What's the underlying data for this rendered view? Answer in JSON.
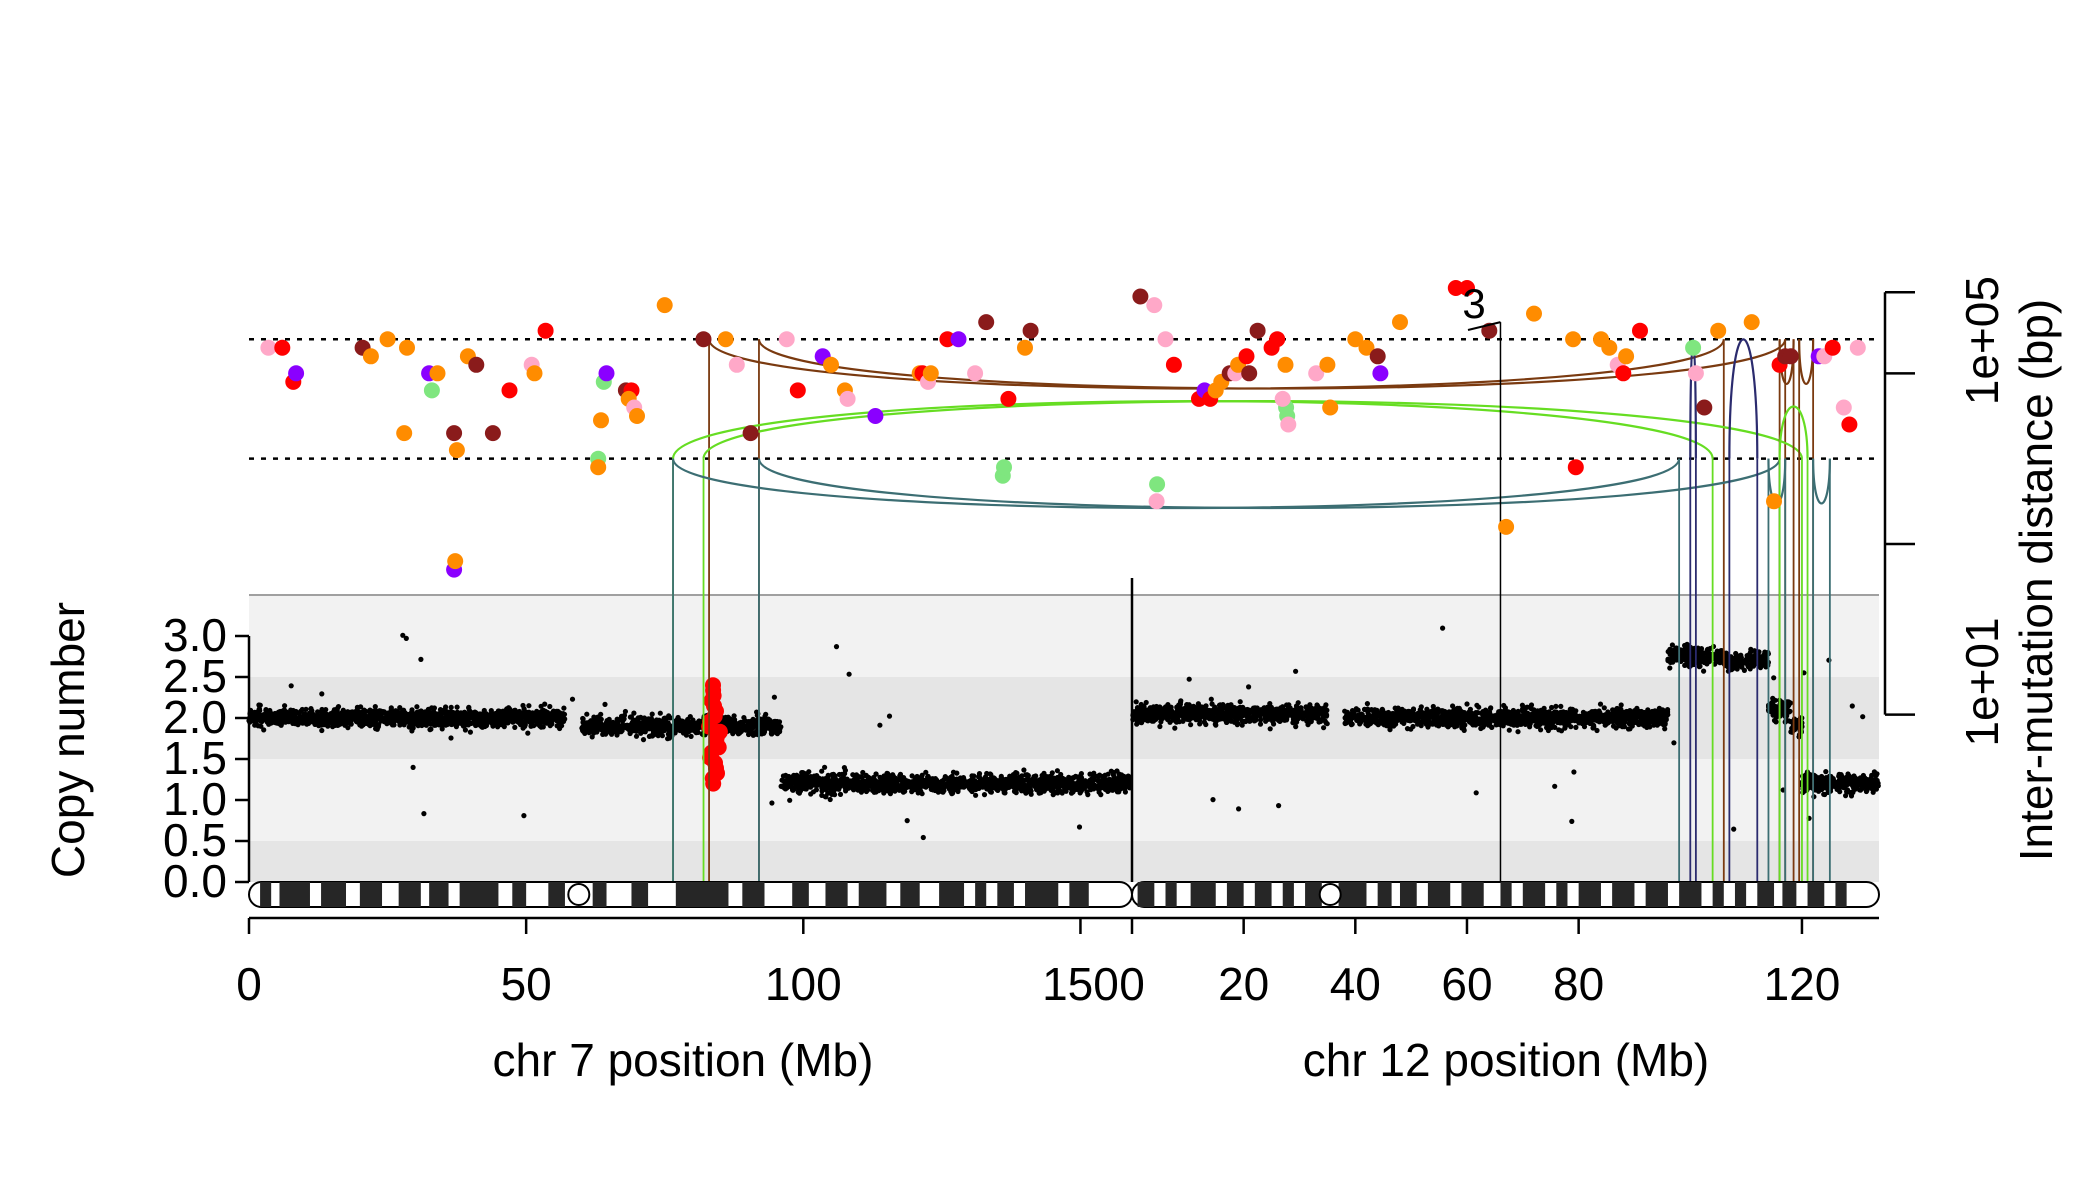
{
  "chart_data": {
    "type": "scatter",
    "description_of_panels": "rainfall-style inter-mutation distance scatter (top) over segmented copy-number track (bottom) for chr 7 and chr 12 with structural-variant arcs",
    "x_axis_left": {
      "label": "chr 7 position (Mb)",
      "ticks": [
        0,
        50,
        100,
        150
      ],
      "tick_labels": [
        "0",
        "50",
        "100",
        "150"
      ],
      "range": [
        0,
        159.3
      ]
    },
    "x_axis_right": {
      "label": "chr 12 position (Mb)",
      "ticks": [
        0,
        20,
        40,
        60,
        80,
        120
      ],
      "tick_labels": [
        "0",
        "20",
        "40",
        "60",
        "80",
        "120"
      ],
      "range": [
        0,
        133.8
      ]
    },
    "y_axis_left": {
      "label": "Copy number",
      "ticks": [
        0.0,
        0.5,
        1.0,
        1.5,
        2.0,
        2.5,
        3.0
      ],
      "tick_labels": [
        "0.0",
        "0.5",
        "1.0",
        "1.5",
        "2.0",
        "2.5",
        "3.0"
      ],
      "range": [
        0,
        3.5
      ]
    },
    "y_axis_right": {
      "label": "Inter-mutation distance (bp)",
      "scale": "log10",
      "ticks": [
        1,
        100,
        10000,
        1000000
      ],
      "tick_labels": [
        "1e+01",
        "1e+05"
      ],
      "labelled_tick_values": [
        10,
        100000
      ],
      "range": [
        1,
        1000000
      ]
    },
    "thresholds_log10": [
      4,
      5.4
    ],
    "marker_label": {
      "text": "3",
      "chr": "12",
      "pos_mb": 66,
      "log10": 5.6
    },
    "colors": {
      "C>A": "#8a1b1b",
      "C>G": "#ff0000",
      "C>T": "#ffa8c8",
      "T>A": "#ff8c00",
      "T>C": "#8a00ff",
      "T>G": "#7fe67f",
      "copy_number_points": "#000000",
      "copy_number_highlight": "#ff0000",
      "arc_del": "#7a3a10",
      "arc_dup": "#66dd22",
      "arc_inv_tt": "#3c6e73",
      "arc_inv_hh": "#2b2b6e",
      "band_dark": "#e5e5e5",
      "band_light": "#f2f2f2"
    },
    "rainfall_series": [
      {
        "chr": "7",
        "points": [
          [
            3.5,
            5.3,
            "C>T"
          ],
          [
            6,
            5.3,
            "C>G"
          ],
          [
            8,
            4.9,
            "C>G"
          ],
          [
            8.5,
            5.0,
            "T>C"
          ],
          [
            20.5,
            5.3,
            "C>A"
          ],
          [
            22,
            5.2,
            "T>A"
          ],
          [
            25,
            5.4,
            "T>A"
          ],
          [
            28,
            4.3,
            "T>A"
          ],
          [
            28.5,
            5.3,
            "T>A"
          ],
          [
            32.5,
            5.0,
            "T>C"
          ],
          [
            33,
            4.8,
            "T>G"
          ],
          [
            34,
            5.0,
            "T>A"
          ],
          [
            37,
            4.3,
            "C>A"
          ],
          [
            37.5,
            4.1,
            "T>A"
          ],
          [
            37,
            2.7,
            "T>C"
          ],
          [
            37.2,
            2.8,
            "T>A"
          ],
          [
            39.5,
            5.2,
            "T>A"
          ],
          [
            41,
            5.1,
            "C>A"
          ],
          [
            44,
            4.3,
            "C>A"
          ],
          [
            47,
            4.8,
            "C>G"
          ],
          [
            51,
            5.1,
            "C>T"
          ],
          [
            51.5,
            5.0,
            "T>A"
          ],
          [
            53.5,
            5.5,
            "C>G"
          ],
          [
            63,
            4.0,
            "T>G"
          ],
          [
            63.5,
            4.45,
            "T>A"
          ],
          [
            63,
            3.9,
            "T>A"
          ],
          [
            64,
            4.9,
            "T>G"
          ],
          [
            64.5,
            5.0,
            "T>C"
          ],
          [
            68,
            4.8,
            "C>A"
          ],
          [
            69,
            4.8,
            "C>G"
          ],
          [
            68.5,
            4.7,
            "T>A"
          ],
          [
            69.5,
            4.6,
            "C>T"
          ],
          [
            70,
            4.5,
            "T>A"
          ],
          [
            75,
            5.8,
            "T>A"
          ],
          [
            82,
            5.4,
            "C>A"
          ],
          [
            86,
            5.4,
            "T>A"
          ],
          [
            88,
            5.1,
            "C>T"
          ],
          [
            90.5,
            4.3,
            "C>A"
          ],
          [
            97,
            5.4,
            "C>T"
          ],
          [
            99,
            4.8,
            "C>G"
          ],
          [
            103.5,
            5.2,
            "T>C"
          ],
          [
            105,
            5.1,
            "T>A"
          ],
          [
            107.5,
            4.8,
            "T>A"
          ],
          [
            108,
            4.7,
            "C>T"
          ],
          [
            113,
            4.5,
            "T>C"
          ],
          [
            121,
            5.0,
            "T>A"
          ],
          [
            121.5,
            5.0,
            "C>G"
          ],
          [
            122.5,
            4.9,
            "C>T"
          ],
          [
            123,
            5.0,
            "T>A"
          ],
          [
            126,
            5.4,
            "C>G"
          ],
          [
            128,
            5.4,
            "T>C"
          ],
          [
            131,
            5.0,
            "C>T"
          ],
          [
            133,
            5.6,
            "C>A"
          ],
          [
            136,
            3.8,
            "T>G"
          ],
          [
            136.2,
            3.9,
            "T>G"
          ],
          [
            137,
            4.7,
            "C>G"
          ],
          [
            140,
            5.3,
            "T>A"
          ],
          [
            141,
            5.5,
            "C>A"
          ]
        ]
      },
      {
        "chr": "12",
        "points": [
          [
            1.5,
            5.9,
            "C>A"
          ],
          [
            4,
            5.8,
            "C>T"
          ],
          [
            6,
            5.4,
            "C>T"
          ],
          [
            7.5,
            5.1,
            "C>G"
          ],
          [
            4.5,
            3.7,
            "T>G"
          ],
          [
            4.4,
            3.5,
            "C>T"
          ],
          [
            12,
            4.7,
            "C>G"
          ],
          [
            13,
            4.8,
            "T>C"
          ],
          [
            14,
            4.7,
            "C>G"
          ],
          [
            15,
            4.8,
            "T>A"
          ],
          [
            16,
            4.9,
            "T>A"
          ],
          [
            17.5,
            5.0,
            "C>A"
          ],
          [
            18.5,
            5.0,
            "C>T"
          ],
          [
            19,
            5.1,
            "T>A"
          ],
          [
            20.5,
            5.2,
            "C>G"
          ],
          [
            21,
            5.0,
            "C>A"
          ],
          [
            22.5,
            5.5,
            "C>A"
          ],
          [
            25,
            5.3,
            "C>G"
          ],
          [
            26,
            5.4,
            "C>G"
          ],
          [
            27.5,
            5.1,
            "T>A"
          ],
          [
            27.8,
            4.5,
            "T>G"
          ],
          [
            27.6,
            4.6,
            "T>G"
          ],
          [
            27,
            4.7,
            "C>T"
          ],
          [
            28,
            4.4,
            "C>T"
          ],
          [
            33,
            5.0,
            "C>T"
          ],
          [
            35,
            5.1,
            "T>A"
          ],
          [
            35.5,
            4.6,
            "T>A"
          ],
          [
            40,
            5.4,
            "T>A"
          ],
          [
            42,
            5.3,
            "T>A"
          ],
          [
            44,
            5.2,
            "C>A"
          ],
          [
            44.5,
            5.0,
            "T>C"
          ],
          [
            48,
            5.6,
            "T>A"
          ],
          [
            58,
            6.0,
            "C>G"
          ],
          [
            60,
            6.0,
            "C>G"
          ],
          [
            64,
            5.5,
            "C>A"
          ],
          [
            67,
            3.2,
            "T>A"
          ],
          [
            72,
            5.7,
            "T>A"
          ],
          [
            79,
            5.4,
            "T>A"
          ],
          [
            79.5,
            3.9,
            "C>G"
          ],
          [
            84,
            5.4,
            "T>A"
          ],
          [
            85.5,
            5.3,
            "T>A"
          ],
          [
            87,
            5.1,
            "C>T"
          ],
          [
            88,
            5.0,
            "C>G"
          ],
          [
            88.5,
            5.2,
            "T>A"
          ],
          [
            91,
            5.5,
            "C>G"
          ],
          [
            100.5,
            5.3,
            "T>G"
          ],
          [
            101,
            5.0,
            "C>T"
          ],
          [
            102.5,
            4.6,
            "C>A"
          ],
          [
            105,
            5.5,
            "T>A"
          ],
          [
            111,
            5.6,
            "T>A"
          ],
          [
            115,
            3.5,
            "T>A"
          ],
          [
            116,
            5.1,
            "C>G"
          ],
          [
            117,
            5.2,
            "C>A"
          ],
          [
            118,
            5.2,
            "C>A"
          ],
          [
            123,
            5.2,
            "T>C"
          ],
          [
            124,
            5.2,
            "C>T"
          ],
          [
            125.5,
            5.3,
            "C>G"
          ],
          [
            127.5,
            4.6,
            "C>T"
          ],
          [
            128.5,
            4.4,
            "C>G"
          ],
          [
            130,
            5.3,
            "C>T"
          ]
        ]
      }
    ],
    "copy_number_segments": [
      {
        "chr": "7",
        "start": 0,
        "end": 57,
        "cn": 2.0
      },
      {
        "chr": "7",
        "start": 60,
        "end": 96,
        "cn": 1.9
      },
      {
        "chr": "7",
        "start": 96,
        "end": 159,
        "cn": 1.2
      },
      {
        "chr": "12",
        "start": 0,
        "end": 35,
        "cn": 2.05
      },
      {
        "chr": "12",
        "start": 38,
        "end": 96,
        "cn": 2.0
      },
      {
        "chr": "12",
        "start": 96,
        "end": 106,
        "cn": 2.75
      },
      {
        "chr": "12",
        "start": 106,
        "end": 114,
        "cn": 2.7
      },
      {
        "chr": "12",
        "start": 114,
        "end": 118,
        "cn": 2.1
      },
      {
        "chr": "12",
        "start": 118,
        "end": 120,
        "cn": 1.9
      },
      {
        "chr": "12",
        "start": 120,
        "end": 133.8,
        "cn": 1.2
      }
    ],
    "copy_number_highlight": {
      "chr": "7",
      "start": 83,
      "end": 85,
      "cn_range": [
        1.2,
        2.4
      ]
    },
    "structural_variants": [
      {
        "type": "del",
        "chr1": "7",
        "pos1": 83,
        "chr2": "12",
        "pos2": 106
      },
      {
        "type": "del",
        "chr1": "7",
        "pos1": 92,
        "chr2": "12",
        "pos2": 117
      },
      {
        "type": "dup",
        "chr1": "7",
        "pos1": 76.5,
        "chr2": "12",
        "pos2": 104
      },
      {
        "type": "dup",
        "chr1": "7",
        "pos1": 82,
        "chr2": "12",
        "pos2": 120
      },
      {
        "type": "inv_tt",
        "chr1": "7",
        "pos1": 76.5,
        "chr2": "12",
        "pos2": 98
      },
      {
        "type": "inv_tt",
        "chr1": "7",
        "pos1": 92,
        "chr2": "12",
        "pos2": 116
      },
      {
        "type": "inv_hh",
        "chr1": "12",
        "pos1": 100,
        "chr2": "12",
        "pos2": 101
      },
      {
        "type": "inv_hh",
        "chr1": "12",
        "pos1": 107,
        "chr2": "12",
        "pos2": 112
      },
      {
        "type": "del",
        "chr1": "12",
        "pos1": 116,
        "chr2": "12",
        "pos2": 118.5
      },
      {
        "type": "del",
        "chr1": "12",
        "pos1": 119.5,
        "chr2": "12",
        "pos2": 122
      },
      {
        "type": "dup",
        "chr1": "12",
        "pos1": 116,
        "chr2": "12",
        "pos2": 121
      },
      {
        "type": "inv_tt",
        "chr1": "12",
        "pos1": 114,
        "chr2": "12",
        "pos2": 117
      },
      {
        "type": "inv_tt",
        "chr1": "12",
        "pos1": 122,
        "chr2": "12",
        "pos2": 125
      }
    ],
    "ideogram": {
      "chr7_centromere_mb": 59.5,
      "chr12_centromere_mb": 35.5,
      "chr7_dark_bands": [
        [
          2,
          4
        ],
        [
          5.5,
          11
        ],
        [
          13,
          17.5
        ],
        [
          20,
          24
        ],
        [
          27,
          31
        ],
        [
          32.5,
          36
        ],
        [
          38,
          45
        ],
        [
          47.5,
          50
        ],
        [
          54,
          57
        ],
        [
          62,
          64.5
        ],
        [
          69,
          72
        ],
        [
          77,
          86.5
        ],
        [
          89,
          93
        ],
        [
          98,
          101
        ],
        [
          104,
          108
        ],
        [
          110,
          115
        ],
        [
          117.5,
          121
        ],
        [
          124.5,
          129
        ],
        [
          131,
          133
        ],
        [
          135,
          138
        ],
        [
          140,
          146
        ],
        [
          148,
          151.5
        ]
      ],
      "chr12_dark_bands": [
        [
          1,
          4
        ],
        [
          6,
          8
        ],
        [
          10.5,
          15
        ],
        [
          17,
          20
        ],
        [
          22,
          25
        ],
        [
          27,
          29
        ],
        [
          31,
          34
        ],
        [
          37,
          42
        ],
        [
          44,
          46.5
        ],
        [
          48,
          51
        ],
        [
          53,
          57
        ],
        [
          59,
          63
        ],
        [
          66,
          68
        ],
        [
          70,
          74
        ],
        [
          76,
          78
        ],
        [
          80,
          84
        ],
        [
          86,
          90
        ],
        [
          92,
          96
        ],
        [
          98,
          102
        ],
        [
          104,
          106
        ],
        [
          108,
          110
        ],
        [
          112,
          115
        ],
        [
          116.5,
          119
        ],
        [
          121,
          124
        ],
        [
          126,
          128
        ]
      ]
    },
    "grid": false,
    "legend": "none"
  }
}
